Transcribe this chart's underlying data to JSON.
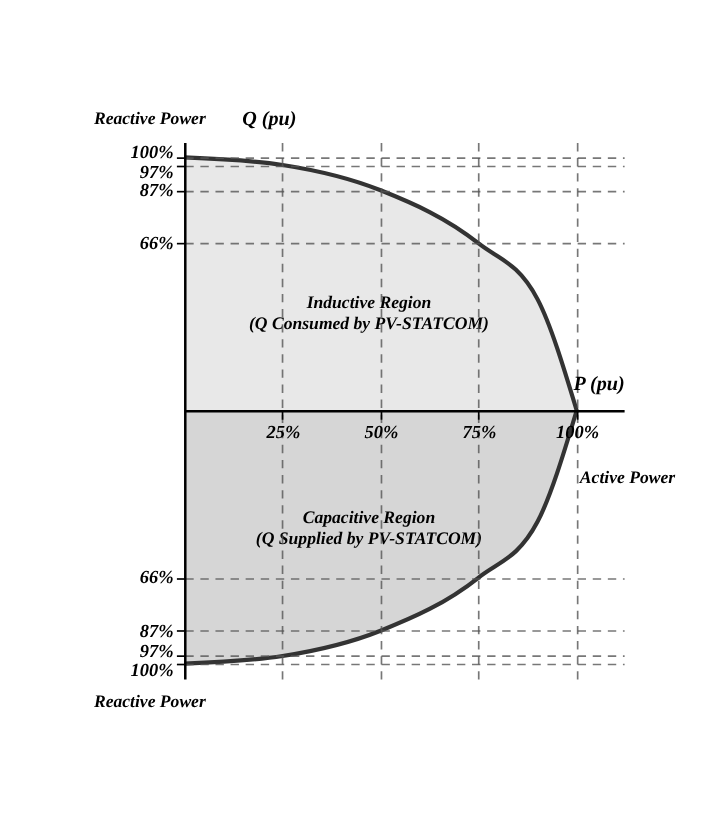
{
  "chart_data": {
    "type": "area",
    "xlabel": "P (pu)",
    "ylabel": "Q (pu)",
    "x": [
      0,
      25,
      50,
      75,
      90,
      100
    ],
    "series": [
      {
        "color": "#e6e6e6",
        "values": [
          100,
          97,
          87,
          66,
          44,
          0
        ]
      },
      {
        "color": "#d2d2d2",
        "values": [
          -100,
          -97,
          -87,
          -66,
          -44,
          0
        ]
      }
    ],
    "xlim": [
      0,
      112
    ],
    "ylim": [
      -106,
      106
    ],
    "xticks": [
      {
        "value": 25,
        "label": "25%"
      },
      {
        "value": 50,
        "label": "50%"
      },
      {
        "value": 75,
        "label": "75%"
      },
      {
        "value": 100,
        "label": "100%"
      }
    ],
    "yticks": [
      {
        "value": 100,
        "label": "100%"
      },
      {
        "value": 97,
        "label": "97%"
      },
      {
        "value": 87,
        "label": "87%"
      },
      {
        "value": 66,
        "label": "66%"
      },
      {
        "value": -66,
        "label": "66%"
      },
      {
        "value": -87,
        "label": "87%"
      },
      {
        "value": -97,
        "label": "97%"
      },
      {
        "value": -100,
        "label": "100%"
      }
    ],
    "grid": true,
    "line_style": "solid",
    "annotations": [
      "Reactive Power",
      "Inductive Region\n(Q Consumed by PV-STATCOM)",
      "Capacitive Region\n(Q Supplied by PV-STATCOM)",
      "Active Power",
      "Reactive Power"
    ]
  }
}
